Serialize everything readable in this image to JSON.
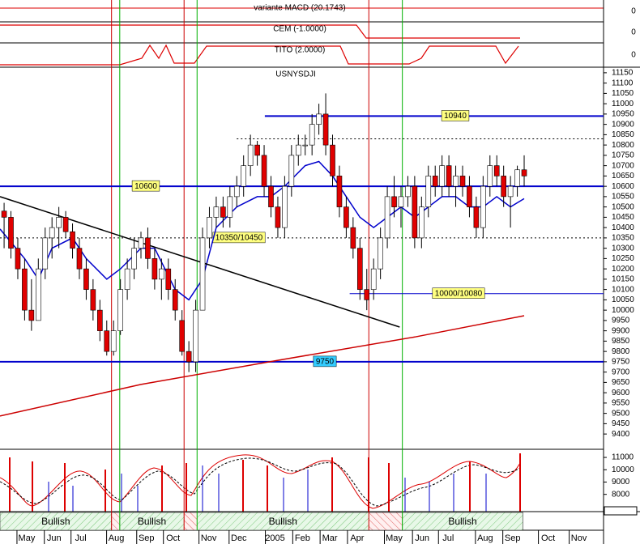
{
  "chart_data": {
    "type": "candlestick",
    "title": "USNYSDJI",
    "x": [
      0,
      1,
      2,
      3,
      4,
      5,
      6,
      7,
      8,
      9,
      10,
      11,
      12,
      13,
      14,
      15,
      16,
      17,
      18,
      19,
      20,
      21,
      22,
      23,
      24,
      25,
      26,
      27,
      28,
      29,
      30,
      31,
      32,
      33,
      34,
      35,
      36,
      37,
      38,
      39,
      40,
      41,
      42,
      43,
      44,
      45,
      46,
      47,
      48,
      49,
      50,
      51,
      52,
      53,
      54,
      55,
      56,
      57,
      58,
      59,
      60,
      61,
      62,
      63,
      64,
      65,
      66,
      67,
      68,
      69,
      70,
      71,
      72,
      73,
      74,
      75,
      76
    ],
    "open": [
      10480,
      10450,
      10300,
      10200,
      10000,
      9950,
      10200,
      10350,
      10400,
      10450,
      10380,
      10300,
      10200,
      10100,
      10000,
      9900,
      9800,
      9900,
      10100,
      10200,
      10300,
      10350,
      10250,
      10150,
      10200,
      10100,
      9950,
      9800,
      9750,
      10000,
      10350,
      10450,
      10500,
      10450,
      10550,
      10600,
      10700,
      10800,
      10750,
      10600,
      10500,
      10400,
      10600,
      10750,
      10800,
      10800,
      10900,
      10950,
      10800,
      10650,
      10500,
      10400,
      10300,
      10100,
      10100,
      10200,
      10350,
      10550,
      10500,
      10550,
      10600,
      10350,
      10500,
      10650,
      10600,
      10700,
      10600,
      10650,
      10600,
      10500,
      10400,
      10600,
      10700,
      10650,
      10550,
      10600,
      10680
    ],
    "high": [
      10520,
      10480,
      10350,
      10250,
      10150,
      10250,
      10400,
      10450,
      10500,
      10480,
      10420,
      10350,
      10250,
      10150,
      10050,
      9950,
      9950,
      10150,
      10250,
      10350,
      10380,
      10400,
      10300,
      10250,
      10250,
      10150,
      10000,
      9850,
      10050,
      10400,
      10500,
      10550,
      10550,
      10600,
      10650,
      10750,
      10850,
      10820,
      10800,
      10650,
      10550,
      10650,
      10800,
      10850,
      10850,
      10950,
      11000,
      11050,
      10850,
      10700,
      10550,
      10450,
      10350,
      10200,
      10250,
      10400,
      10600,
      10650,
      10600,
      10650,
      10650,
      10550,
      10700,
      10700,
      10750,
      10750,
      10700,
      10700,
      10650,
      10550,
      10650,
      10750,
      10750,
      10700,
      10650,
      10700,
      10750
    ],
    "low": [
      10300,
      10250,
      10150,
      9950,
      9900,
      9950,
      10150,
      10250,
      10300,
      10350,
      10250,
      10150,
      10050,
      9950,
      9850,
      9780,
      9780,
      9880,
      10050,
      10150,
      10250,
      10200,
      10100,
      10050,
      10050,
      9950,
      9780,
      9700,
      9700,
      10000,
      10300,
      10400,
      10400,
      10400,
      10500,
      10550,
      10650,
      10700,
      10550,
      10450,
      10350,
      10350,
      10550,
      10700,
      10750,
      10750,
      10850,
      10750,
      10600,
      10450,
      10350,
      10250,
      10050,
      10000,
      10050,
      10150,
      10300,
      10450,
      10400,
      10500,
      10300,
      10300,
      10450,
      10550,
      10550,
      10550,
      10500,
      10550,
      10450,
      10350,
      10350,
      10550,
      10600,
      10500,
      10400,
      10550,
      10600
    ],
    "close": [
      10450,
      10300,
      10200,
      10000,
      9950,
      10200,
      10350,
      10400,
      10450,
      10380,
      10300,
      10200,
      10100,
      10000,
      9900,
      9800,
      9900,
      10100,
      10200,
      10300,
      10350,
      10250,
      10150,
      10200,
      10100,
      10000,
      9800,
      9750,
      10000,
      10350,
      10450,
      10500,
      10450,
      10550,
      10600,
      10700,
      10800,
      10750,
      10600,
      10500,
      10400,
      10600,
      10750,
      10800,
      10800,
      10900,
      10950,
      10800,
      10650,
      10500,
      10400,
      10300,
      10100,
      10050,
      10200,
      10350,
      10550,
      10500,
      10550,
      10600,
      10350,
      10500,
      10650,
      10600,
      10700,
      10600,
      10650,
      10600,
      10500,
      10400,
      10600,
      10700,
      10650,
      10550,
      10600,
      10680,
      10650
    ],
    "up_color": "#ffffff",
    "down_color": "#e00000",
    "xlim": [
      -0.6,
      87.6
    ],
    "xticks": [
      {
        "value": 3.3,
        "label": "May"
      },
      {
        "value": 7.3,
        "label": "Jun"
      },
      {
        "value": 11.2,
        "label": "Jul"
      },
      {
        "value": 16.4,
        "label": "Aug"
      },
      {
        "value": 20.8,
        "label": "Sep"
      },
      {
        "value": 24.7,
        "label": "Oct"
      },
      {
        "value": 29.9,
        "label": "Nov"
      },
      {
        "value": 34.3,
        "label": "Dec"
      },
      {
        "value": 39.6,
        "label": "2005"
      },
      {
        "value": 43.6,
        "label": "Feb"
      },
      {
        "value": 47.6,
        "label": "Mar"
      },
      {
        "value": 51.6,
        "label": "Apr"
      },
      {
        "value": 57.0,
        "label": "May"
      },
      {
        "value": 61.1,
        "label": "Jun"
      },
      {
        "value": 64.9,
        "label": "Jul"
      },
      {
        "value": 70.3,
        "label": "Aug"
      },
      {
        "value": 74.3,
        "label": "Sep"
      },
      {
        "value": 79.5,
        "label": "Oct"
      },
      {
        "value": 84.0,
        "label": "Nov"
      }
    ],
    "ylim": [
      9326,
      11177
    ],
    "yticks": [
      11150,
      11100,
      11050,
      11000,
      10950,
      10900,
      10850,
      10800,
      10750,
      10700,
      10650,
      10600,
      10550,
      10500,
      10450,
      10400,
      10350,
      10300,
      10250,
      10200,
      10150,
      10100,
      10050,
      10000,
      9950,
      9900,
      9850,
      9800,
      9750,
      9700,
      9650,
      9600,
      9550,
      9500,
      9450,
      9400
    ],
    "moving_averages": [
      {
        "color": "#0000cc",
        "x": [
          -0.6,
          3,
          5,
          7,
          10,
          12,
          15,
          17,
          20,
          22,
          25,
          27,
          29,
          31,
          34,
          37,
          39,
          41,
          44,
          46,
          48,
          50,
          52,
          54,
          56,
          58,
          60,
          62,
          64,
          66,
          68,
          70,
          72,
          74,
          76
        ],
        "values": [
          10393,
          10250,
          10150,
          10300,
          10350,
          10250,
          10150,
          10200,
          10300,
          10300,
          10100,
          10050,
          10150,
          10400,
          10500,
          10550,
          10550,
          10600,
          10700,
          10720,
          10650,
          10550,
          10450,
          10400,
          10450,
          10500,
          10450,
          10500,
          10550,
          10550,
          10500,
          10500,
          10550,
          10500,
          10540
        ]
      },
      {
        "color": "#cc0000",
        "x": [
          -0.6,
          20,
          40,
          60,
          76
        ],
        "values": [
          9487,
          9640,
          9757,
          9870,
          9973
        ]
      }
    ],
    "trendline": {
      "x": [
        -0.6,
        57.8
      ],
      "values": [
        10550,
        9918
      ],
      "color": "#000000"
    },
    "levels": [
      {
        "value": 10940,
        "label": "10940",
        "x0": 38.1,
        "style": "solid",
        "label_color": "#ffff80"
      },
      {
        "value": 10830,
        "x0": 34,
        "style": "dashed"
      },
      {
        "value": 10600,
        "label": "10600",
        "x0": -0.6,
        "style": "solid",
        "label_color": "#ffff80"
      },
      {
        "value": 10350,
        "label": "10350/10450",
        "x0": -0.6,
        "style": "dashed",
        "label_color": "#ffff80"
      },
      {
        "value": 10080,
        "label": "10000/10080",
        "x0": 50.5,
        "style": "thin",
        "label_color": "#ffff80"
      },
      {
        "value": 9750,
        "label": "9750",
        "x0": -0.6,
        "style": "solid",
        "label_color": "#33ccff"
      }
    ],
    "signals": {
      "sell": [
        15.7,
        26.3,
        53.3
      ],
      "buy": [
        16.9,
        28.2,
        58.2
      ]
    },
    "trend_bands": [
      {
        "label": "Bullish",
        "x0": -0.6,
        "x1": 15.7
      },
      {
        "label": "Bullish",
        "x0": 16.9,
        "x1": 26.3
      },
      {
        "label": "Bullish",
        "x0": 28.2,
        "x1": 53.3
      },
      {
        "label": "Bullish",
        "x0": 58.2,
        "x1": 75.8
      }
    ],
    "indicators": [
      {
        "label": "variante MACD (20.1743)",
        "value": 0
      },
      {
        "label": "CEM (-1.0000)",
        "value": 0
      },
      {
        "label": "TITO (2.0000)",
        "value": 0
      }
    ],
    "lower_panel": {
      "ylim": [
        6600,
        11660
      ],
      "yticks": [
        11000,
        10000,
        9000,
        8000
      ]
    }
  }
}
